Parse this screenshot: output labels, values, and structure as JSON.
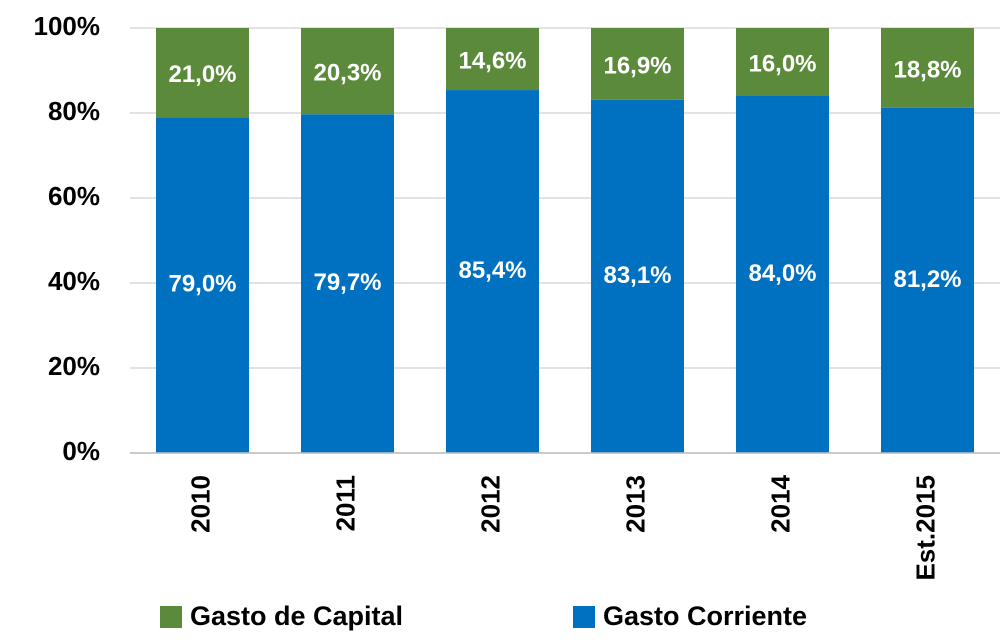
{
  "chart_data": {
    "type": "stacked_bar",
    "categories": [
      "2010",
      "2011",
      "2012",
      "2013",
      "2014",
      "Est.2015"
    ],
    "series": [
      {
        "name": "Gasto de Capital",
        "color": "#5b8a3a",
        "values": [
          21.0,
          20.3,
          14.6,
          16.9,
          16.0,
          18.8
        ],
        "value_labels": [
          "21,0%",
          "20,3%",
          "14,6%",
          "16,9%",
          "16,0%",
          "18,8%"
        ]
      },
      {
        "name": "Gasto Corriente",
        "color": "#0070c0",
        "values": [
          79.0,
          79.7,
          85.4,
          83.1,
          84.0,
          81.2
        ],
        "value_labels": [
          "79,0%",
          "79,7%",
          "85,4%",
          "83,1%",
          "84,0%",
          "81,2%"
        ]
      }
    ],
    "ylim": [
      0,
      100
    ],
    "yticks": [
      {
        "value": 0,
        "label": "0%"
      },
      {
        "value": 20,
        "label": "20%"
      },
      {
        "value": 40,
        "label": "40%"
      },
      {
        "value": 60,
        "label": "60%"
      },
      {
        "value": 80,
        "label": "80%"
      },
      {
        "value": 100,
        "label": "100%"
      }
    ],
    "grid": true,
    "legend": "bottom"
  }
}
